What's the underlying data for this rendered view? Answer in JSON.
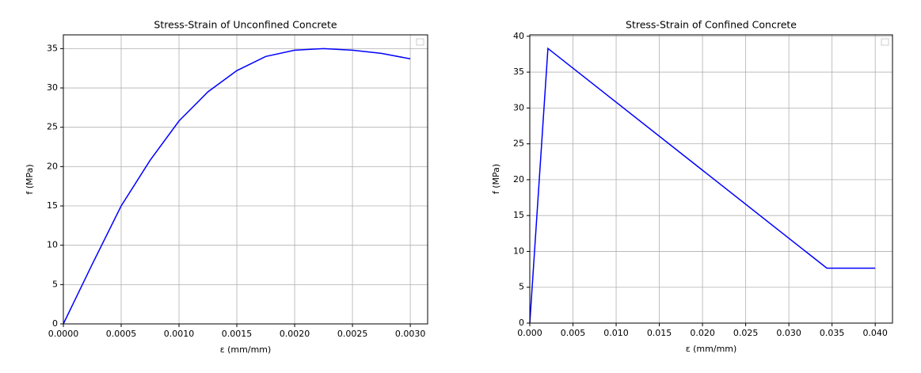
{
  "chart_data": [
    {
      "type": "line",
      "title": "Stress-Strain of Unconfined Concrete",
      "xlabel": "ε (mm/mm)",
      "ylabel": "f (MPa)",
      "x": [
        0,
        0.00025,
        0.0005,
        0.00075,
        0.001,
        0.00125,
        0.0015,
        0.00175,
        0.002,
        0.00225,
        0.0025,
        0.00275,
        0.003
      ],
      "series": [
        {
          "color": "#0000ff",
          "values": [
            0,
            7.6,
            15,
            20.8,
            25.8,
            29.5,
            32.2,
            34.0,
            34.8,
            35,
            34.8,
            34.4,
            33.7
          ]
        }
      ],
      "xlim": [
        0,
        0.00315
      ],
      "ylim": [
        0,
        36.75
      ],
      "xticks": [
        {
          "value": 0,
          "label": "0.0000"
        },
        {
          "value": 0.0005,
          "label": "0.0005"
        },
        {
          "value": 0.001,
          "label": "0.0010"
        },
        {
          "value": 0.0015,
          "label": "0.0015"
        },
        {
          "value": 0.002,
          "label": "0.0020"
        },
        {
          "value": 0.0025,
          "label": "0.0025"
        },
        {
          "value": 0.003,
          "label": "0.0030"
        }
      ],
      "yticks": [
        0,
        5,
        10,
        15,
        20,
        25,
        30,
        35
      ],
      "grid": true,
      "legend": "upper right"
    },
    {
      "type": "line",
      "title": "Stress-Strain of Confined Concrete",
      "xlabel": "ε (mm/mm)",
      "ylabel": "f (MPa)",
      "x": [
        0,
        0.0021,
        0.0344,
        0.04
      ],
      "series": [
        {
          "color": "#0000ff",
          "values": [
            0,
            38.3,
            7.66,
            7.66
          ]
        }
      ],
      "xlim": [
        0,
        0.042
      ],
      "ylim": [
        0,
        40.2
      ],
      "xticks": [
        {
          "value": 0,
          "label": "0.000"
        },
        {
          "value": 0.005,
          "label": "0.005"
        },
        {
          "value": 0.01,
          "label": "0.010"
        },
        {
          "value": 0.015,
          "label": "0.015"
        },
        {
          "value": 0.02,
          "label": "0.020"
        },
        {
          "value": 0.025,
          "label": "0.025"
        },
        {
          "value": 0.03,
          "label": "0.030"
        },
        {
          "value": 0.035,
          "label": "0.035"
        },
        {
          "value": 0.04,
          "label": "0.040"
        }
      ],
      "yticks": [
        0,
        5,
        10,
        15,
        20,
        25,
        30,
        35,
        40
      ],
      "grid": true,
      "legend": "upper right"
    }
  ]
}
